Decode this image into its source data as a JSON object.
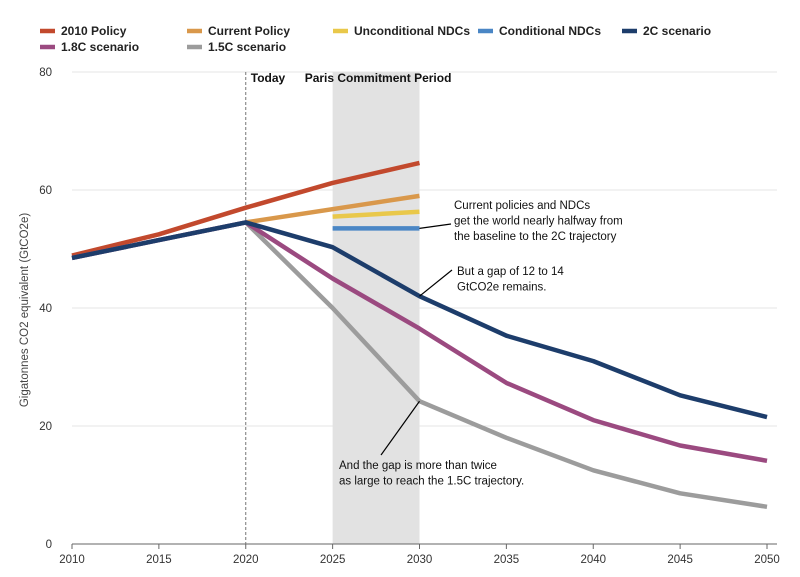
{
  "chart_data": {
    "type": "line",
    "ylabel": "Gigatonnes CO2 equivalent (GtCO2e)",
    "xlabel": "",
    "xlim": [
      2010,
      2050
    ],
    "ylim": [
      0,
      80
    ],
    "x_ticks": [
      "2010",
      "2015",
      "2020",
      "2025",
      "2030",
      "2035",
      "2040",
      "2045",
      "2050"
    ],
    "y_ticks": [
      "0",
      "20",
      "40",
      "60",
      "80"
    ],
    "grid": "horizontal",
    "legend_position": "top",
    "series": [
      {
        "name": "2010 Policy",
        "color": "#c2492d",
        "x": [
          2010,
          2015,
          2020,
          2025,
          2030
        ],
        "y": [
          48.9,
          52.5,
          57.0,
          61.2,
          64.6
        ]
      },
      {
        "name": "Current Policy",
        "color": "#d9984b",
        "x": [
          2020,
          2030
        ],
        "y": [
          54.5,
          59.0
        ]
      },
      {
        "name": "Unconditional NDCs",
        "color": "#e9c84a",
        "x": [
          2025,
          2030
        ],
        "y": [
          55.5,
          56.3
        ]
      },
      {
        "name": "Conditional NDCs",
        "color": "#4a86c5",
        "x": [
          2025,
          2030
        ],
        "y": [
          53.5,
          53.5
        ]
      },
      {
        "name": "2C scenario",
        "color": "#1d3d6b",
        "x": [
          2010,
          2015,
          2020,
          2025,
          2030,
          2035,
          2040,
          2045,
          2050
        ],
        "y": [
          48.5,
          51.5,
          54.5,
          50.3,
          42.0,
          35.3,
          31.0,
          25.2,
          21.5
        ]
      },
      {
        "name": "1.8C scenario",
        "color": "#9b4a80",
        "x": [
          2010,
          2015,
          2020,
          2025,
          2030,
          2035,
          2040,
          2045,
          2050
        ],
        "y": [
          48.5,
          51.5,
          54.5,
          45.0,
          36.5,
          27.3,
          21.0,
          16.7,
          14.1
        ]
      },
      {
        "name": "1.5C scenario",
        "color": "#9c9c9c",
        "x": [
          2010,
          2015,
          2020,
          2025,
          2030,
          2035,
          2040,
          2045,
          2050
        ],
        "y": [
          48.5,
          51.5,
          54.5,
          40.0,
          24.2,
          18.0,
          12.5,
          8.6,
          6.3
        ]
      }
    ],
    "markers": {
      "today": {
        "x": 2020,
        "label": "Today"
      },
      "paris_period": {
        "x_start": 2025,
        "x_end": 2030,
        "label": "Paris Commitment Period"
      }
    },
    "annotations": [
      {
        "lines": [
          "Current policies and NDCs",
          "get the world nearly halfway from",
          "the baseline to the 2C trajectory"
        ],
        "target_x": 2030,
        "target_y": 53.5
      },
      {
        "lines": [
          "But a gap of 12 to 14",
          "GtCO2e remains."
        ],
        "target_x": 2030,
        "target_y": 42.0
      },
      {
        "lines": [
          "And the gap is more than twice",
          "as large to reach the 1.5C trajectory."
        ],
        "target_x": 2030,
        "target_y": 24.2
      }
    ]
  }
}
